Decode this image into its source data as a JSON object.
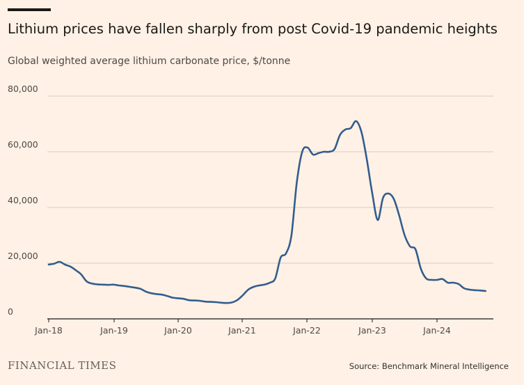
{
  "header": {
    "title": "Lithium prices have fallen sharply from post Covid-19 pandemic heights",
    "subtitle": "Global weighted average lithium carbonate price, $/tonne"
  },
  "footer": {
    "brand": "FINANCIAL TIMES",
    "source": "Source: Benchmark Mineral Intelligence"
  },
  "chart_data": {
    "type": "line",
    "title": "Lithium prices have fallen sharply from post Covid-19 pandemic heights",
    "subtitle": "Global weighted average lithium carbonate price, $/tonne",
    "xlabel": "",
    "ylabel": "",
    "x_ticks": [
      "Jan-18",
      "Jan-19",
      "Jan-20",
      "Jan-21",
      "Jan-22",
      "Jan-23",
      "Jan-24"
    ],
    "y_ticks": [
      "0",
      "20,000",
      "40,000",
      "60,000",
      "80,000"
    ],
    "ylim": [
      0,
      80000
    ],
    "grid": true,
    "line_color": "#325d8e",
    "series": [
      {
        "x": [
          "2018-01",
          "2018-02",
          "2018-03",
          "2018-04",
          "2018-05",
          "2018-06",
          "2018-07",
          "2018-08",
          "2018-09",
          "2018-10",
          "2018-11",
          "2018-12",
          "2019-01",
          "2019-02",
          "2019-03",
          "2019-04",
          "2019-05",
          "2019-06",
          "2019-07",
          "2019-08",
          "2019-09",
          "2019-10",
          "2019-11",
          "2019-12",
          "2020-01",
          "2020-02",
          "2020-03",
          "2020-04",
          "2020-05",
          "2020-06",
          "2020-07",
          "2020-08",
          "2020-09",
          "2020-10",
          "2020-11",
          "2020-12",
          "2021-01",
          "2021-02",
          "2021-03",
          "2021-04",
          "2021-05",
          "2021-06",
          "2021-07",
          "2021-08",
          "2021-09",
          "2021-10",
          "2021-11",
          "2021-12",
          "2022-01",
          "2022-02",
          "2022-03",
          "2022-04",
          "2022-05",
          "2022-06",
          "2022-07",
          "2022-08",
          "2022-09",
          "2022-10",
          "2022-11",
          "2022-12",
          "2023-01",
          "2023-02",
          "2023-03",
          "2023-04",
          "2023-05",
          "2023-06",
          "2023-07",
          "2023-08",
          "2023-09",
          "2023-10",
          "2023-11",
          "2023-12",
          "2024-01",
          "2024-02",
          "2024-03",
          "2024-04",
          "2024-05",
          "2024-06",
          "2024-07",
          "2024-08",
          "2024-09",
          "2024-10"
        ],
        "values": [
          19500,
          19800,
          20500,
          19500,
          18800,
          17500,
          16000,
          13500,
          12700,
          12400,
          12300,
          12200,
          12300,
          12000,
          11800,
          11500,
          11200,
          10800,
          9800,
          9200,
          8900,
          8700,
          8200,
          7600,
          7400,
          7200,
          6700,
          6600,
          6500,
          6200,
          6100,
          6000,
          5800,
          5700,
          5900,
          6800,
          8500,
          10500,
          11500,
          12000,
          12300,
          13000,
          14500,
          22000,
          23500,
          30000,
          49000,
          60000,
          61500,
          59000,
          59500,
          60000,
          60000,
          61000,
          66000,
          68000,
          68500,
          71000,
          67000,
          57000,
          45000,
          35500,
          43500,
          45000,
          43000,
          37000,
          30000,
          26000,
          25000,
          18000,
          14500,
          14000,
          14000,
          14300,
          13000,
          13000,
          12500,
          11000,
          10500,
          10300,
          10200,
          10000
        ]
      }
    ]
  }
}
